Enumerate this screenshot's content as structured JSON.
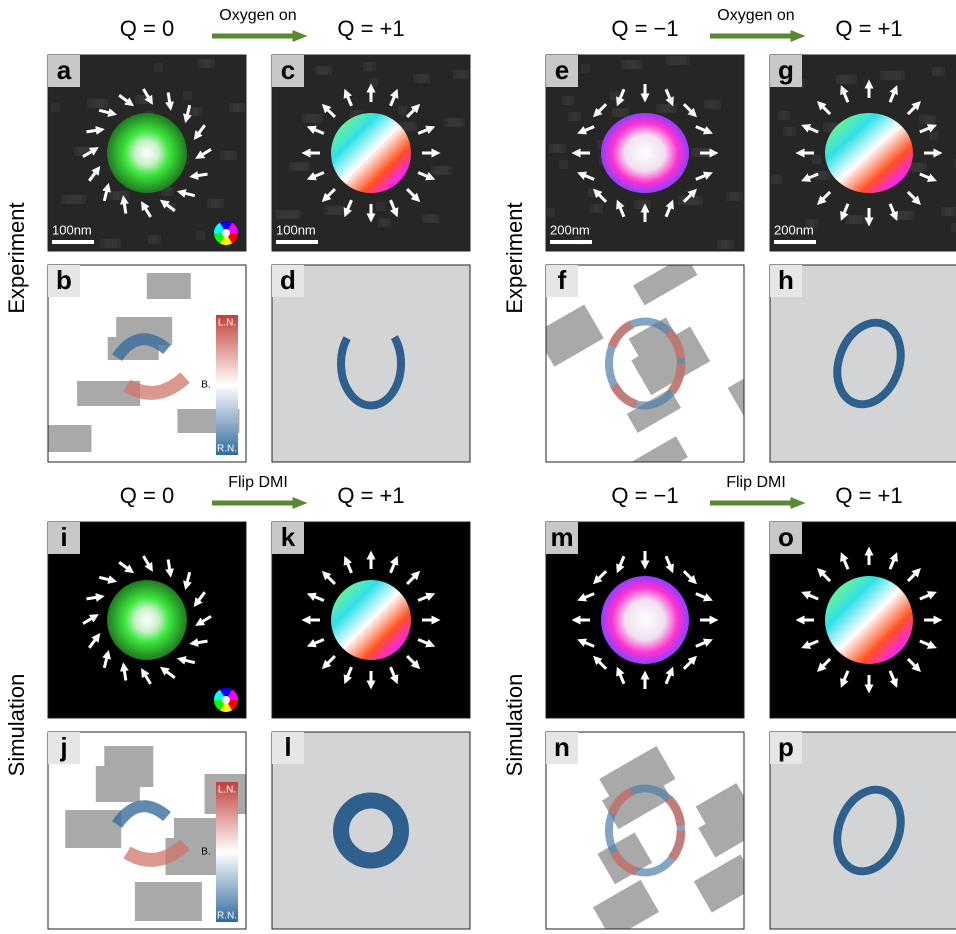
{
  "blocks": [
    {
      "left_q": "Q = 0",
      "arrow_label": "Oxygen on",
      "right_q": "Q = +1",
      "row_label": "Experiment",
      "panels": [
        {
          "letter": "a",
          "scale_bar": "100nm"
        },
        {
          "letter": "c",
          "scale_bar": "100nm"
        },
        {
          "letter": "b",
          "colorbar": [
            "L.N.",
            "B.",
            "R.N."
          ]
        },
        {
          "letter": "d"
        }
      ]
    },
    {
      "left_q": "Q = −1",
      "arrow_label": "Oxygen on",
      "right_q": "Q = +1",
      "row_label": "Experiment",
      "panels": [
        {
          "letter": "e",
          "scale_bar": "200nm"
        },
        {
          "letter": "g",
          "scale_bar": "200nm"
        },
        {
          "letter": "f"
        },
        {
          "letter": "h"
        }
      ]
    },
    {
      "left_q": "Q = 0",
      "arrow_label": "Flip DMI",
      "right_q": "Q = +1",
      "row_label": "Simulation",
      "panels": [
        {
          "letter": "i"
        },
        {
          "letter": "k"
        },
        {
          "letter": "j",
          "colorbar": [
            "L.N.",
            "B.",
            "R.N."
          ]
        },
        {
          "letter": "l"
        }
      ]
    },
    {
      "left_q": "Q = −1",
      "arrow_label": "Flip DMI",
      "right_q": "Q = +1",
      "row_label": "Simulation",
      "panels": [
        {
          "letter": "m"
        },
        {
          "letter": "o"
        },
        {
          "letter": "n"
        },
        {
          "letter": "p"
        }
      ]
    }
  ]
}
